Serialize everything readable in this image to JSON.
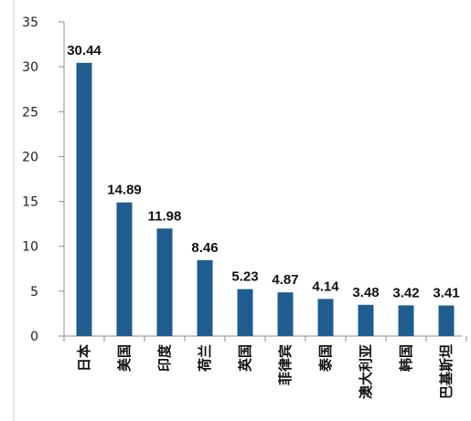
{
  "chart_data": {
    "type": "bar",
    "categories": [
      "日本",
      "美国",
      "印度",
      "荷兰",
      "英国",
      "菲律宾",
      "泰国",
      "澳大利亚",
      "韩国",
      "巴基斯坦"
    ],
    "values": [
      30.44,
      14.89,
      11.98,
      8.46,
      5.23,
      4.87,
      4.14,
      3.48,
      3.42,
      3.41
    ],
    "data_labels": [
      "30.44",
      "14.89",
      "11.98",
      "8.46",
      "5.23",
      "4.87",
      "4.14",
      "3.48",
      "3.42",
      "3.41"
    ],
    "yticks": [
      0,
      5,
      10,
      15,
      20,
      25,
      30,
      35
    ],
    "ytick_labels": [
      "0",
      "5",
      "10",
      "15",
      "20",
      "25",
      "30",
      "35"
    ],
    "ylim": [
      0,
      35
    ],
    "title": "",
    "xlabel": "",
    "ylabel": "",
    "grid": false,
    "legend": "none",
    "colors": {
      "bar": "#1F5C8F",
      "axis": "#8C8C8C",
      "text": "#111111"
    }
  }
}
